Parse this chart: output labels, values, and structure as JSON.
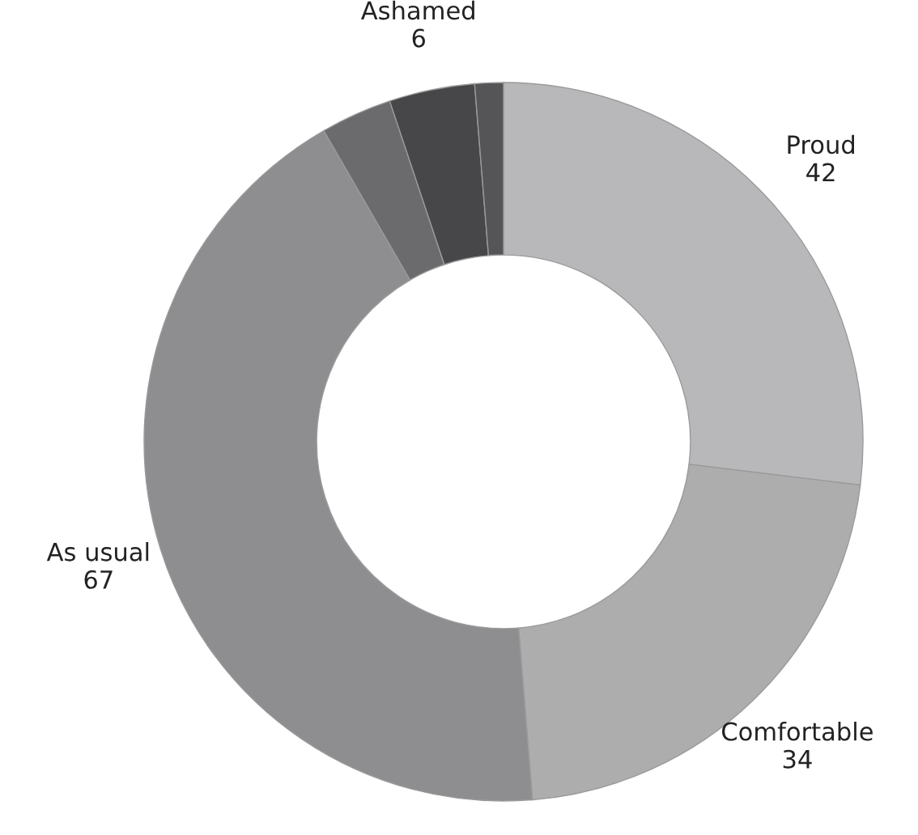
{
  "chart_data": {
    "type": "donut",
    "categories": [
      "Proud",
      "Comfortable",
      "As usual",
      null,
      "Ashamed",
      null
    ],
    "values": [
      42,
      34,
      67,
      5,
      6,
      2
    ],
    "value_labels": [
      "42",
      "34",
      "67",
      null,
      "6",
      null
    ],
    "colors": [
      "#b8b8ba",
      "#adadae",
      "#8e8e90",
      "#6b6b6d",
      "#47474a",
      "#555557"
    ],
    "legend": false
  }
}
